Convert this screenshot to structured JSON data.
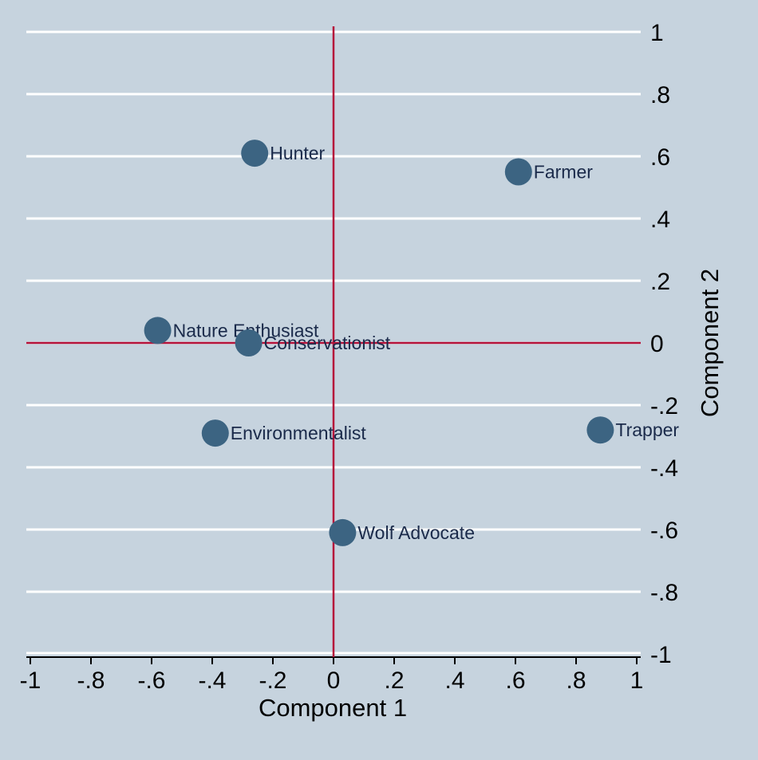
{
  "chart_data": {
    "type": "scatter",
    "title": "",
    "xlabel": "Component 1",
    "ylabel": "Component 2",
    "xlim": [
      -1,
      1
    ],
    "ylim": [
      -1,
      1
    ],
    "xticks": [
      -1,
      -0.8,
      -0.6,
      -0.4,
      -0.2,
      0,
      0.2,
      0.4,
      0.6,
      0.8,
      1
    ],
    "xtick_labels": [
      "-1",
      "-.8",
      "-.6",
      "-.4",
      "-.2",
      "0",
      ".2",
      ".4",
      ".6",
      ".8",
      "1"
    ],
    "yticks": [
      1,
      0.8,
      0.6,
      0.4,
      0.2,
      0,
      -0.2,
      -0.4,
      -0.6,
      -0.8,
      -1
    ],
    "ytick_labels": [
      "1",
      ".8",
      ".6",
      ".4",
      ".2",
      "0",
      "-.2",
      "-.4",
      "-.6",
      "-.8",
      "-1"
    ],
    "y_axis_position": "right",
    "grid": "horizontal",
    "reference_lines": [
      "x=0",
      "y=0"
    ],
    "points": [
      {
        "label": "Hunter",
        "x": -0.26,
        "y": 0.61
      },
      {
        "label": "Farmer",
        "x": 0.61,
        "y": 0.55
      },
      {
        "label": "Nature Enthusiast",
        "x": -0.58,
        "y": 0.04
      },
      {
        "label": "Conservationist",
        "x": -0.28,
        "y": 0.0
      },
      {
        "label": "Environmentalist",
        "x": -0.39,
        "y": -0.29
      },
      {
        "label": "Trapper",
        "x": 0.88,
        "y": -0.28
      },
      {
        "label": "Wolf Advocate",
        "x": 0.03,
        "y": -0.61
      }
    ],
    "colors": {
      "background": "#c6d3de",
      "marker": "#3c6482",
      "marker_label": "#1a2a4a",
      "reference_line": "#b5123a",
      "grid": "#ffffff"
    }
  }
}
